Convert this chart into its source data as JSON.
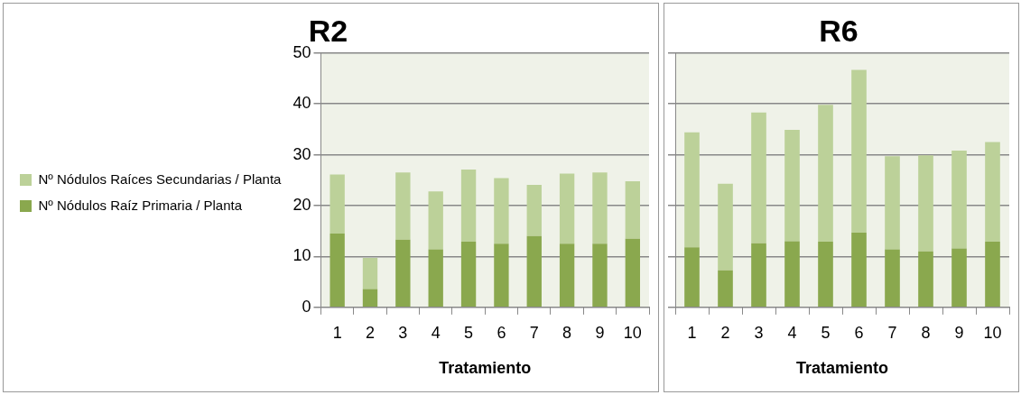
{
  "chart_data": [
    {
      "type": "bar",
      "title": "R2",
      "xlabel": "Tratamiento",
      "categories": [
        "1",
        "2",
        "3",
        "4",
        "5",
        "6",
        "7",
        "8",
        "9",
        "10"
      ],
      "stacked": true,
      "legend": "left",
      "grid": "y",
      "ylim": [
        0,
        50
      ],
      "yticks": [
        0,
        10,
        20,
        30,
        40,
        50
      ],
      "series": [
        {
          "name": "Nº Nódulos Raíz Primaria / Planta",
          "color": "#8aa84e",
          "values": [
            14.5,
            3.6,
            13.3,
            11.4,
            12.9,
            12.5,
            14.0,
            12.5,
            12.5,
            13.5
          ]
        },
        {
          "name": "Nº Nódulos Raíces Secundarias / Planta",
          "color": "#bcd199",
          "values": [
            11.6,
            6.1,
            13.2,
            11.4,
            14.2,
            12.9,
            10.1,
            13.8,
            14.0,
            11.3
          ]
        }
      ]
    },
    {
      "type": "bar",
      "title": "R6",
      "xlabel": "Tratamiento",
      "categories": [
        "1",
        "2",
        "3",
        "4",
        "5",
        "6",
        "7",
        "8",
        "9",
        "10"
      ],
      "stacked": true,
      "grid": "y",
      "tick_labels": "x",
      "ylim": [
        0,
        50
      ],
      "yticks": [
        0,
        10,
        20,
        30,
        40,
        50
      ],
      "series": [
        {
          "color": "#8aa84e",
          "values": [
            11.8,
            7.3,
            12.6,
            13.0,
            12.9,
            14.7,
            11.4,
            11.0,
            11.6,
            12.9
          ]
        },
        {
          "color": "#bcd199",
          "values": [
            22.6,
            17.0,
            25.7,
            21.9,
            26.9,
            32.0,
            18.3,
            18.9,
            19.2,
            19.6
          ]
        }
      ]
    }
  ]
}
